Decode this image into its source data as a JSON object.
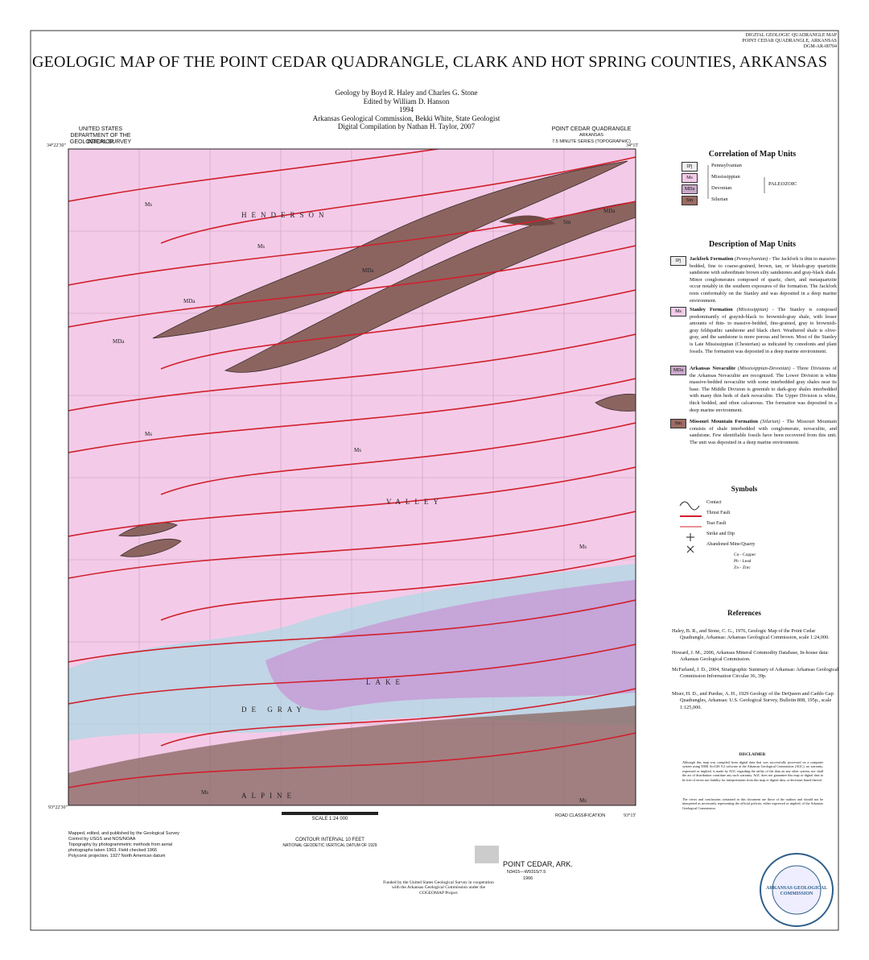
{
  "header": {
    "series_lines": [
      "DIGITAL GEOLOGIC QUADRANGLE MAP",
      "POINT CEDAR QUADRANGLE, ARKANSAS",
      "DGM-AR-00704"
    ],
    "title": "GEOLOGIC MAP OF THE POINT CEDAR QUADRANGLE, CLARK AND HOT SPRING COUNTIES, ARKANSAS"
  },
  "credits": [
    "Geology by Boyd R. Haley and Charles G. Stone",
    "Edited by William D. Hanson",
    "1994",
    "Arkansas Geological Commission, Bekki White, State Geologist",
    "Digital Compilation by Nathan H. Taylor, 2007"
  ],
  "map": {
    "agency": [
      "UNITED STATES",
      "DEPARTMENT OF THE INTERIOR",
      "GEOLOGICAL SURVEY"
    ],
    "quadrangle": [
      "POINT CEDAR QUADRANGLE",
      "ARKANSAS",
      "7.5 MINUTE SERIES (TOPOGRAPHIC)"
    ],
    "labels": [
      "HENDERSON",
      "VALLEY",
      "ALPINE",
      "LAKE",
      "DE GRAY",
      "Ms",
      "Ms",
      "Ms",
      "Ms",
      "Ms",
      "Ms",
      "Ms",
      "MDa",
      "MDa",
      "MDa",
      "MDa",
      "Sm"
    ],
    "corners": [
      "34°22'30\"",
      "93°22'30\"",
      "93°15'",
      "34°15'"
    ],
    "scale": "SCALE 1:24 000",
    "contour": "CONTOUR INTERVAL 10 FEET",
    "datum": "NATIONAL GEODETIC VERTICAL DATUM OF 1929",
    "imprint": [
      "Mapped, edited, and published by the Geological Survey",
      "Control by USGS and NOS/NOAA",
      "Topography by photogrammetric methods from aerial",
      "photographs taken 1963. Field checked 1966",
      "Polyconic projection. 1927 North American datum"
    ],
    "road_classification": "ROAD CLASSIFICATION",
    "sheet_name": "POINT CEDAR, ARK.",
    "sheet_code": "N3415—W9315/7.5",
    "sheet_year": "1966"
  },
  "correlation": {
    "title": "Correlation of Map Units",
    "units": [
      {
        "symbol": "IPj",
        "period": "Pennsylvanian"
      },
      {
        "symbol": "Ms",
        "period": "Mississippian"
      },
      {
        "symbol": "MDa",
        "period": "Devonian"
      },
      {
        "symbol": "Sm",
        "period": "Silurian"
      }
    ],
    "era": "PALEOZOIC"
  },
  "description": {
    "title": "Description of Map Units",
    "units": [
      {
        "symbol": "IPj",
        "name": "Jackfork Formation",
        "age": "(Pennsylvanian)",
        "text": "- The Jackfork is thin to massive-bedded, fine to coarse-grained, brown, tan, or bluish-gray quartzitic sandstone with subordinate brown silty sandstones and gray-black shale. Minor conglomerates composed of quartz, chert, and metaquartzite occur notably in the southern exposures of the formation. The Jackfork rests conformably on the Stanley and was deposited in a deep marine environment."
      },
      {
        "symbol": "Ms",
        "name": "Stanley Formation",
        "age": "(Mississippian)",
        "text": "- The Stanley is composed predominantly of grayish-black to brownish-gray shale, with lesser amounts of thin- to massive-bedded, fine-grained, gray to brownish-gray feldspathic sandstone and black chert. Weathered shale is olive-gray, and the sandstone is more porous and brown. Most of the Stanley is Late Mississippian (Chesterian) as indicated by conodonts and plant fossils. The formation was deposited in a deep marine environment."
      },
      {
        "symbol": "MDa",
        "name": "Arkansas Novaculite",
        "age": "(Mississippian-Devonian)",
        "text": "- Three Divisions of the Arkansas Novaculite are recognized. The Lower Division is white massive-bedded novaculite with some interbedded gray shales near its base. The Middle Division is greenish to dark-gray shales interbedded with many thin beds of dark novaculite. The Upper Division is white, thick bedded, and often calcareous. The formation was deposited in a deep marine environment."
      },
      {
        "symbol": "Sm",
        "name": "Missouri Mountain Formation",
        "age": "(Silurian)",
        "text": "- The Missouri Mountain consists of shale interbedded with conglomerate, novaculite, and sandstone. Few identifiable fossils have been recovered from this unit. The unit was deposited in a deep marine environment."
      }
    ]
  },
  "symbols": {
    "title": "Symbols",
    "items": [
      "Contact",
      "Thrust Fault",
      "Tear Fault",
      "Strike and Dip",
      "Abandoned Mine/Quarry"
    ],
    "minerals": [
      "Cu - Copper",
      "Pb - Lead",
      "Zn - Zinc"
    ]
  },
  "references": {
    "title": "References",
    "items": [
      "Haley, B. R., and Stone, C. G., 1976, Geologic Map of the Point Cedar Quadrangle, Arkansas: Arkansas Geological Commission, scale 1:24,000.",
      "Howard, J. M., 2006, Arkansas Mineral Commodity Database, In-house data: Arkansas Geological Commission.",
      "McFarland, J. D., 2004, Stratigraphic Summary of Arkansas: Arkansas Geological Commission Information Circular 36, 39p.",
      "Miser, H. D., and Purdue, A. H., 1929 Geology of the DeQueen and Caddo Gap Quadrangles, Arkansas: U.S. Geological Survey, Bulletin 808, 195p., scale 1:125,000."
    ]
  },
  "disclaimer": {
    "title": "DISCLAIMER",
    "text": [
      "Although this map was compiled from digital data that was successfully processed on a computer system using ESRI ArcGIS 9.2 software at the Arkansas Geological Commission (AGC), no warranty, expressed or implied, is made by AGC regarding the utility of the data on any other system, nor shall the act of distribution constitute any such warranty. AGC does not guarantee this map or digital data to be free of errors nor liability for interpretations from this map or digital data, or decisions based thereof.",
      "The views and conclusions contained in this document are those of the authors and should not be interpreted as necessarily representing the official policies, either expressed or implied, of the Arkansas Geological Commission."
    ]
  },
  "footer": {
    "funding": "Funded by the United States Geological Survey in cooperation with the Arkansas Geological Commission under the COGEOMAP Project",
    "seal": "ARKANSAS GEOLOGICAL COMMISSION"
  }
}
